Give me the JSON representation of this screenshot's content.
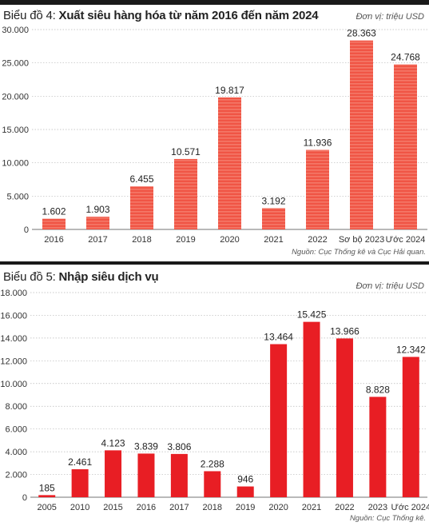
{
  "theme": {
    "bar1_fill": "#f05545",
    "bar1_stripe": "#f47868",
    "bar2_fill": "#e81e24"
  },
  "chart_data": [
    {
      "type": "bar",
      "title_prefix": "Biểu đồ 4:",
      "title": "Xuất siêu hàng hóa từ năm 2016 đến năm 2024",
      "unit": "Đơn vị: triệu USD",
      "source": "Nguồn: Cục Thống kê và Cục Hải quan.",
      "categories": [
        "2016",
        "2017",
        "2018",
        "2019",
        "2020",
        "2021",
        "2022",
        "Sơ bộ 2023",
        "Ước 2024"
      ],
      "values": [
        1602,
        1903,
        6455,
        10571,
        19817,
        3192,
        11936,
        28363,
        24768
      ],
      "value_labels": [
        "1.602",
        "1.903",
        "6.455",
        "10.571",
        "19.817",
        "3.192",
        "11.936",
        "28.363",
        "24.768"
      ],
      "yticks": [
        0,
        5000,
        10000,
        15000,
        20000,
        25000,
        30000
      ],
      "ytick_labels": [
        "0",
        "5.000",
        "10.000",
        "15.000",
        "20.000",
        "25.000",
        "30.000"
      ],
      "ylim": [
        0,
        30000
      ],
      "grid": true
    },
    {
      "type": "bar",
      "title_prefix": "Biểu đồ 5:",
      "title": "Nhập siêu dịch vụ",
      "unit": "Đơn vị: triệu USD",
      "source": "Nguồn: Cục Thống kê.",
      "categories": [
        "2005",
        "2010",
        "2015",
        "2016",
        "2017",
        "2018",
        "2019",
        "2020",
        "2021",
        "2022",
        "2023",
        "Ước 2024"
      ],
      "values": [
        185,
        2461,
        4123,
        3839,
        3806,
        2288,
        946,
        13464,
        15425,
        13966,
        8828,
        12342
      ],
      "value_labels": [
        "185",
        "2.461",
        "4.123",
        "3.839",
        "3.806",
        "2.288",
        "946",
        "13.464",
        "15.425",
        "13.966",
        "8.828",
        "12.342"
      ],
      "yticks": [
        0,
        2000,
        4000,
        6000,
        8000,
        10000,
        12000,
        14000,
        16000,
        18000
      ],
      "ytick_labels": [
        "0",
        "2.000",
        "4.000",
        "6.000",
        "8.000",
        "10.000",
        "12.000",
        "14.000",
        "16.000",
        "18.000"
      ],
      "ylim": [
        0,
        18000
      ],
      "grid": true
    }
  ]
}
